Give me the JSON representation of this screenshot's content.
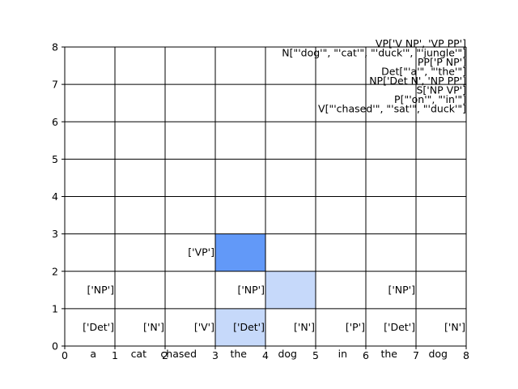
{
  "chart_data": {
    "type": "heatmap",
    "xlim": [
      0,
      8
    ],
    "ylim": [
      0,
      8
    ],
    "x_ticks": [
      "0",
      "1",
      "2",
      "3",
      "4",
      "5",
      "6",
      "7",
      "8"
    ],
    "y_ticks": [
      "0",
      "1",
      "2",
      "3",
      "4",
      "5",
      "6",
      "7",
      "8"
    ],
    "grid": true,
    "words": [
      "a",
      "cat",
      "chased",
      "the",
      "dog",
      "in",
      "the",
      "dog"
    ],
    "cell_labels": [
      {
        "col": 0,
        "row": 0,
        "text": "['Det']"
      },
      {
        "col": 1,
        "row": 0,
        "text": "['N']"
      },
      {
        "col": 2,
        "row": 0,
        "text": "['V']"
      },
      {
        "col": 3,
        "row": 0,
        "text": "['Det']"
      },
      {
        "col": 4,
        "row": 0,
        "text": "['N']"
      },
      {
        "col": 5,
        "row": 0,
        "text": "['P']"
      },
      {
        "col": 6,
        "row": 0,
        "text": "['Det']"
      },
      {
        "col": 7,
        "row": 0,
        "text": "['N']"
      },
      {
        "col": 0,
        "row": 1,
        "text": "['NP']"
      },
      {
        "col": 3,
        "row": 1,
        "text": "['NP']"
      },
      {
        "col": 6,
        "row": 1,
        "text": "['NP']"
      },
      {
        "col": 2,
        "row": 2,
        "text": "['VP']"
      }
    ],
    "highlighted_cells": [
      {
        "col": 3,
        "row": 0,
        "color": "#c6d9fa"
      },
      {
        "col": 4,
        "row": 1,
        "color": "#c6d9fa"
      },
      {
        "col": 3,
        "row": 2,
        "color": "#6299f8"
      }
    ],
    "grammar_rules": [
      "VP['V NP', 'VP PP']",
      "N[\"'dog'\", \"'cat'\", \"'duck'\", \"'jungle'\"]",
      "PP['P NP']",
      "Det[\"'a'\", \"'the'\"]",
      "NP['Det N', 'NP PP']",
      "S['NP VP']",
      "P[\"'on'\", \"'in'\"]",
      "V[\"'chased'\", \"'sat'\", \"'duck'\"]"
    ],
    "colors": {
      "grid": "#000000",
      "light_highlight": "#c6d9fa",
      "dark_highlight": "#6299f8"
    }
  }
}
